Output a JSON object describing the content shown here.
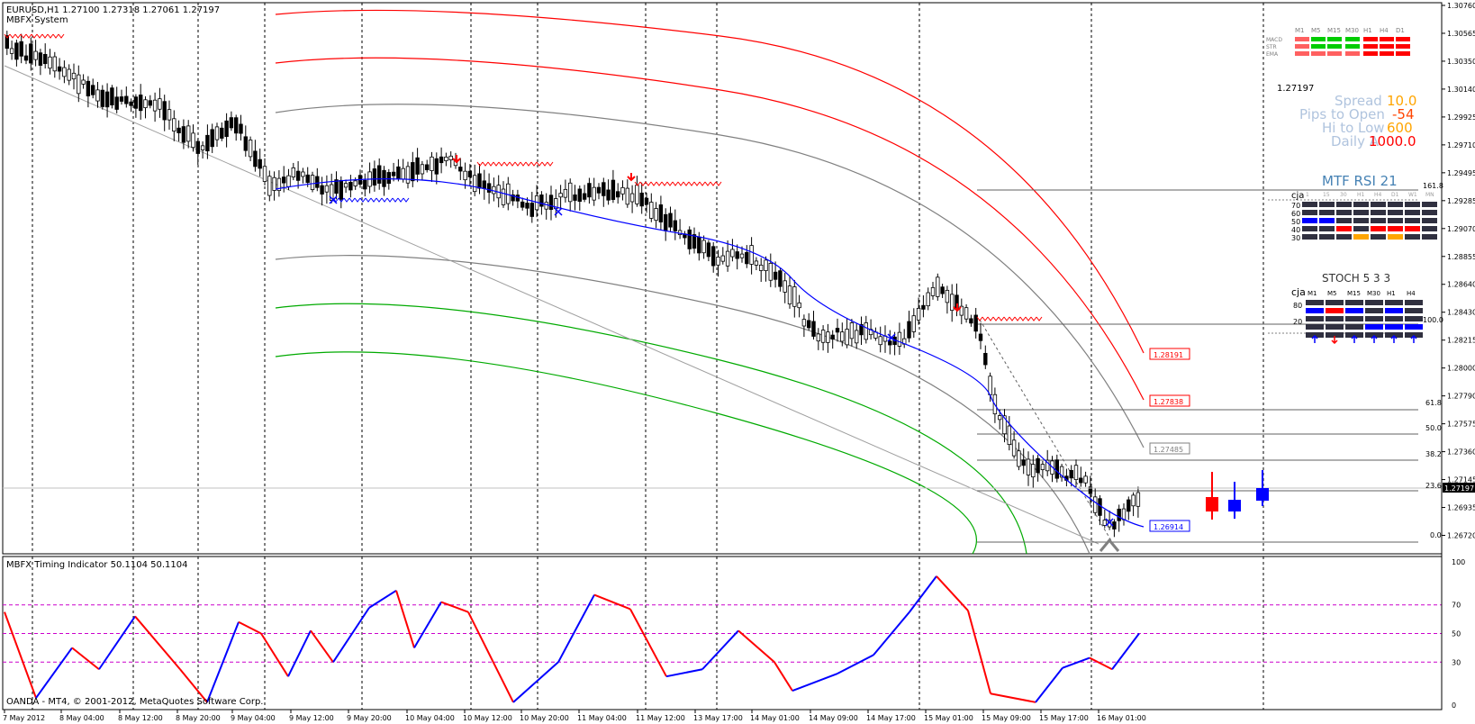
{
  "header": {
    "symbol_line": "EURUSD,H1  1.27100 1.27318 1.27061 1.27197",
    "indicator": "MBFX System"
  },
  "sub_header": "MBFX Timing Indicator 50.1104 50.1104",
  "copyright": "OANDA - MT4, © 2001-2012, MetaQuotes Software Corp.",
  "colors": {
    "grid": "#000000",
    "bull_body": "#ffffff",
    "bear_body": "#000000",
    "trend_blue": "#0000ff",
    "band_red": "#ff0000",
    "band_green": "#00aa00",
    "band_gray": "#808080",
    "osc_red": "#ff0000",
    "osc_blue": "#0000ff",
    "osc_orange": "#ffa500",
    "level_magenta": "#cc00cc",
    "price_big": "#ffa500"
  },
  "right_axis": {
    "prices": [
      "1.30760",
      "1.30565",
      "1.30350",
      "1.30140",
      "1.29925",
      "1.29710",
      "1.29495",
      "1.29285",
      "1.29070",
      "1.28855",
      "1.28640",
      "1.28430",
      "1.28215",
      "1.28000",
      "1.27790",
      "1.27575",
      "1.27360",
      "1.27145",
      "1.26935",
      "1.26720"
    ],
    "current": "1.27197",
    "osc_levels": [
      "100",
      "70",
      "50",
      "30",
      "0"
    ]
  },
  "time_axis": [
    "7 May 2012",
    "8 May 04:00",
    "8 May 12:00",
    "8 May 20:00",
    "9 May 04:00",
    "9 May 12:00",
    "9 May 20:00",
    "10 May 04:00",
    "10 May 12:00",
    "10 May 20:00",
    "11 May 04:00",
    "11 May 12:00",
    "13 May 17:00",
    "14 May 01:00",
    "14 May 09:00",
    "14 May 17:00",
    "15 May 01:00",
    "15 May 09:00",
    "15 May 17:00",
    "16 May 01:00"
  ],
  "dashboard": {
    "timeframes": [
      "M1",
      "M5",
      "M15",
      "M30",
      "H1",
      "H4",
      "D1"
    ],
    "row_labels": [
      "MACD",
      "STR",
      "EMA"
    ],
    "big_price": "1.27197",
    "spread_label": "Spread",
    "spread_value": "10.0",
    "pips_label": "Pips to Open",
    "pips_value": "-54",
    "hilow_label": "Hi to Low",
    "hilow_value": "600",
    "daily_label": "Daily A",
    "daily_value": "1000.0"
  },
  "mtf_rsi": {
    "title": "MTF RSI  21",
    "tag": "cja",
    "cols": [
      "1",
      "15",
      "30",
      "H1",
      "H4",
      "D1",
      "W1",
      "MN"
    ],
    "levels": [
      "70",
      "60",
      "50",
      "40",
      "30"
    ]
  },
  "stoch": {
    "title": "STOCH  5 3 3",
    "tag": "cja",
    "cols": [
      "M1",
      "M5",
      "M15",
      "M30",
      "H1",
      "H4"
    ],
    "levels": [
      "80",
      "20"
    ]
  },
  "fib_levels": [
    "161.8",
    "100.0",
    "61.8",
    "50.0",
    "38.2",
    "23.6",
    "0.0"
  ],
  "price_boxes": [
    "1.28191",
    "1.27838",
    "1.27485",
    "1.26914"
  ]
}
